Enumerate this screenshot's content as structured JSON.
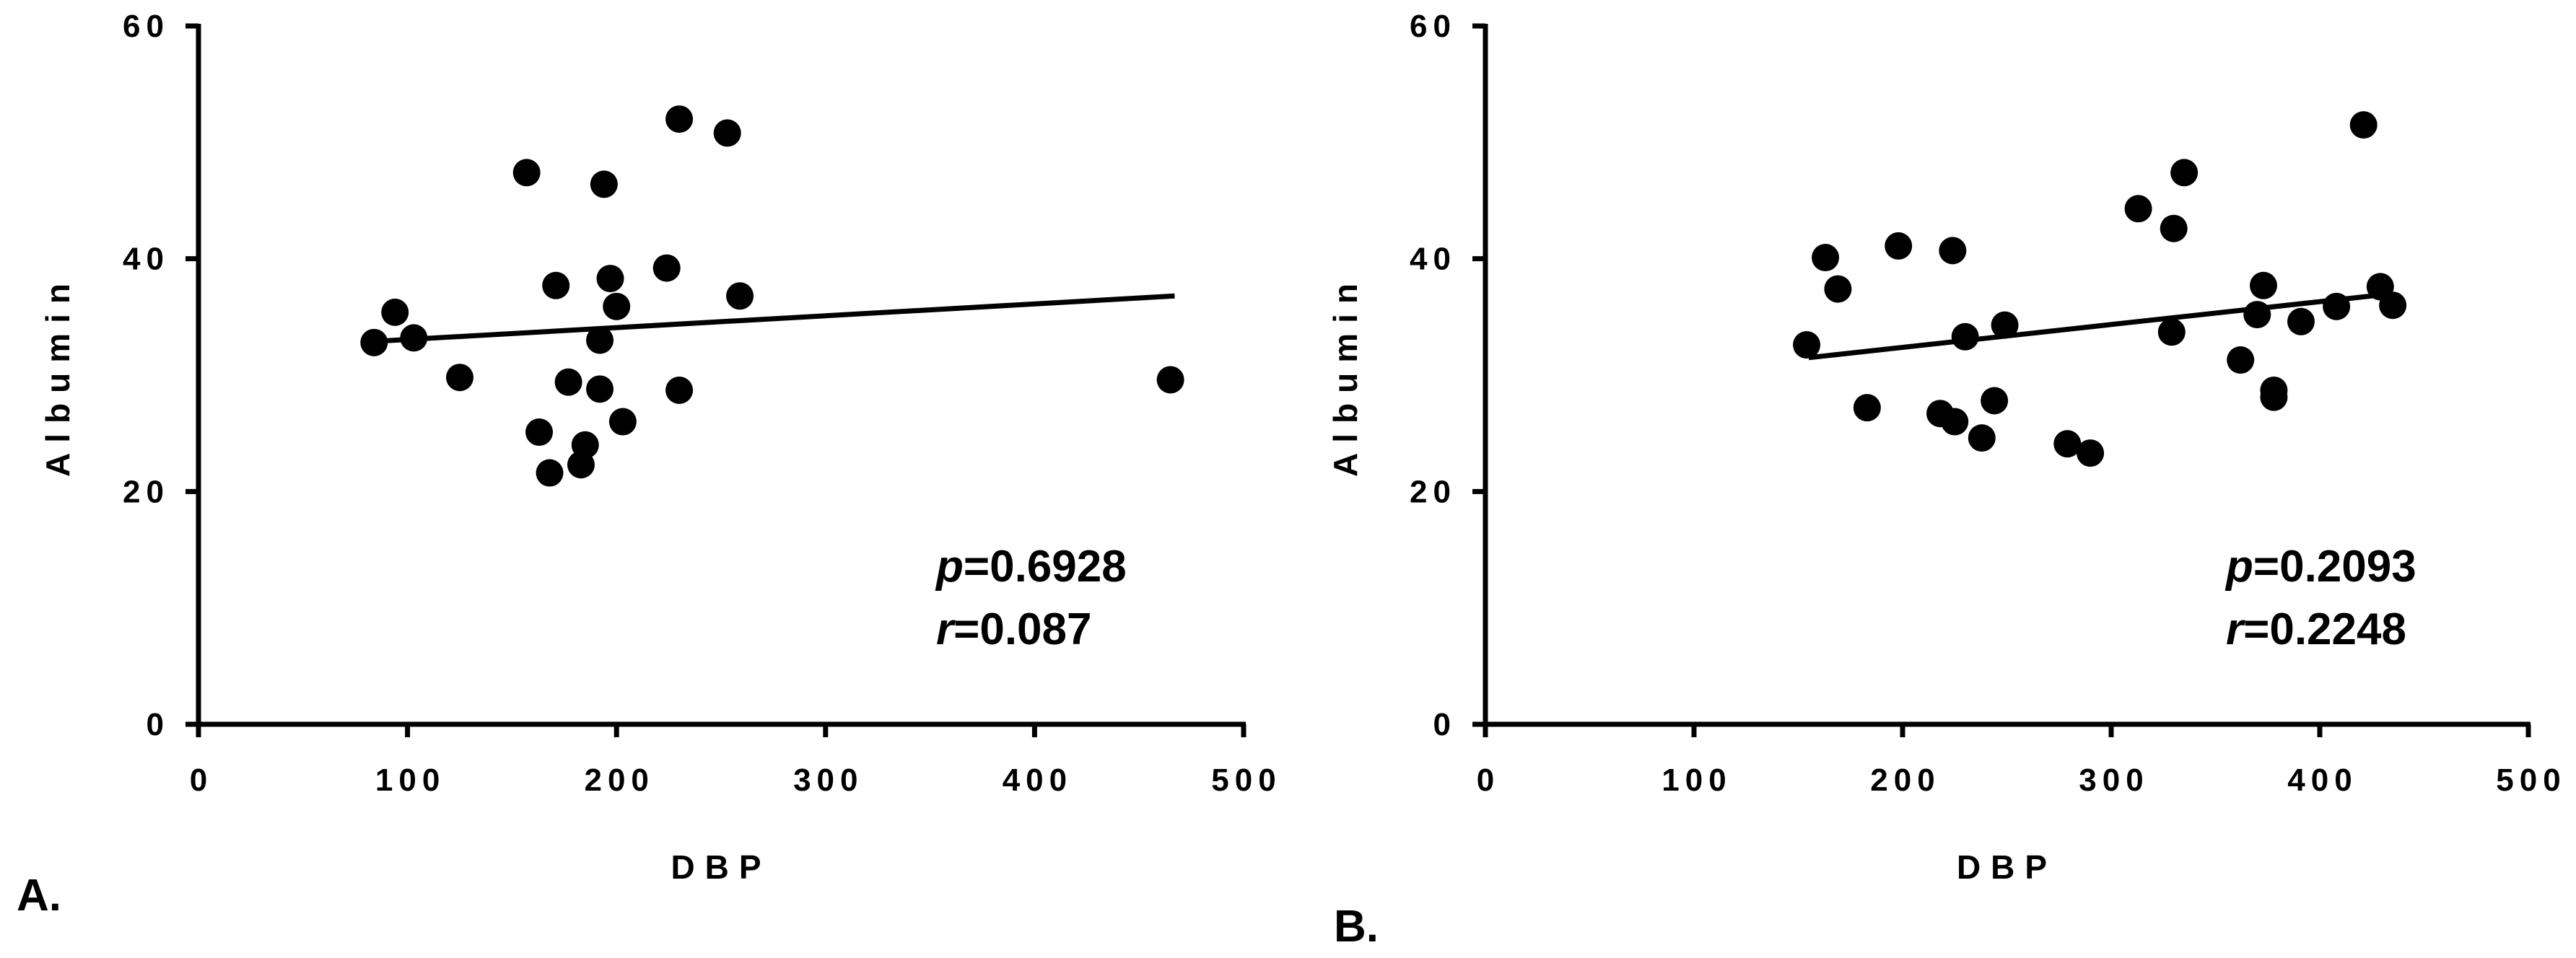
{
  "chart_data": [
    {
      "type": "scatter",
      "panel_label": "A.",
      "xlabel": "DBP",
      "ylabel": "Albumin",
      "color": "#000000",
      "xlim": [
        0,
        500
      ],
      "xticks": [
        0,
        100,
        200,
        300,
        400,
        500
      ],
      "ylim": [
        0,
        60
      ],
      "yticks": [
        0,
        20,
        40,
        60
      ],
      "x": [
        84,
        94,
        103,
        125,
        157,
        163,
        168,
        171,
        177,
        183,
        185,
        192,
        192,
        194,
        197,
        200,
        203,
        224,
        230,
        230,
        253,
        259,
        465
      ],
      "values": [
        32.8,
        35.4,
        33.2,
        29.8,
        47.4,
        25.1,
        21.6,
        37.7,
        29.4,
        22.3,
        24.0,
        28.8,
        33.0,
        46.4,
        38.3,
        35.9,
        26.0,
        39.2,
        52.0,
        28.7,
        50.8,
        36.8,
        29.6
      ],
      "fit": {
        "x": [
          84,
          467
        ],
        "y": [
          32.9,
          36.8
        ]
      },
      "annotations": [
        {
          "italic": "p",
          "text": "=0.6928"
        },
        {
          "italic": "r",
          "text": "=0.087"
        }
      ]
    },
    {
      "type": "scatter",
      "panel_label": "B.",
      "xlabel": "DBP",
      "ylabel": "Albumin",
      "color": "#000000",
      "xlim": [
        0,
        500
      ],
      "xticks": [
        0,
        100,
        200,
        300,
        400,
        500
      ],
      "ylim": [
        0,
        60
      ],
      "yticks": [
        0,
        20,
        40,
        60
      ],
      "x": [
        154,
        163,
        169,
        183,
        198,
        218,
        224,
        225,
        230,
        238,
        244,
        249,
        279,
        290,
        313,
        329,
        330,
        335,
        362,
        370,
        373,
        378,
        378,
        391,
        408,
        421,
        429,
        435
      ],
      "values": [
        32.6,
        40.1,
        37.4,
        27.2,
        41.1,
        26.7,
        40.7,
        26.0,
        33.3,
        24.6,
        27.8,
        34.3,
        24.1,
        23.3,
        44.3,
        33.7,
        42.6,
        47.4,
        31.3,
        35.2,
        37.7,
        28.1,
        28.7,
        34.6,
        35.9,
        51.5,
        37.6,
        36.0
      ],
      "fit": {
        "x": [
          155,
          435
        ],
        "y": [
          31.5,
          37.0
        ]
      },
      "annotations": [
        {
          "italic": "p",
          "text": "=0.2093"
        },
        {
          "italic": "r",
          "text": "=0.2248"
        }
      ]
    }
  ]
}
